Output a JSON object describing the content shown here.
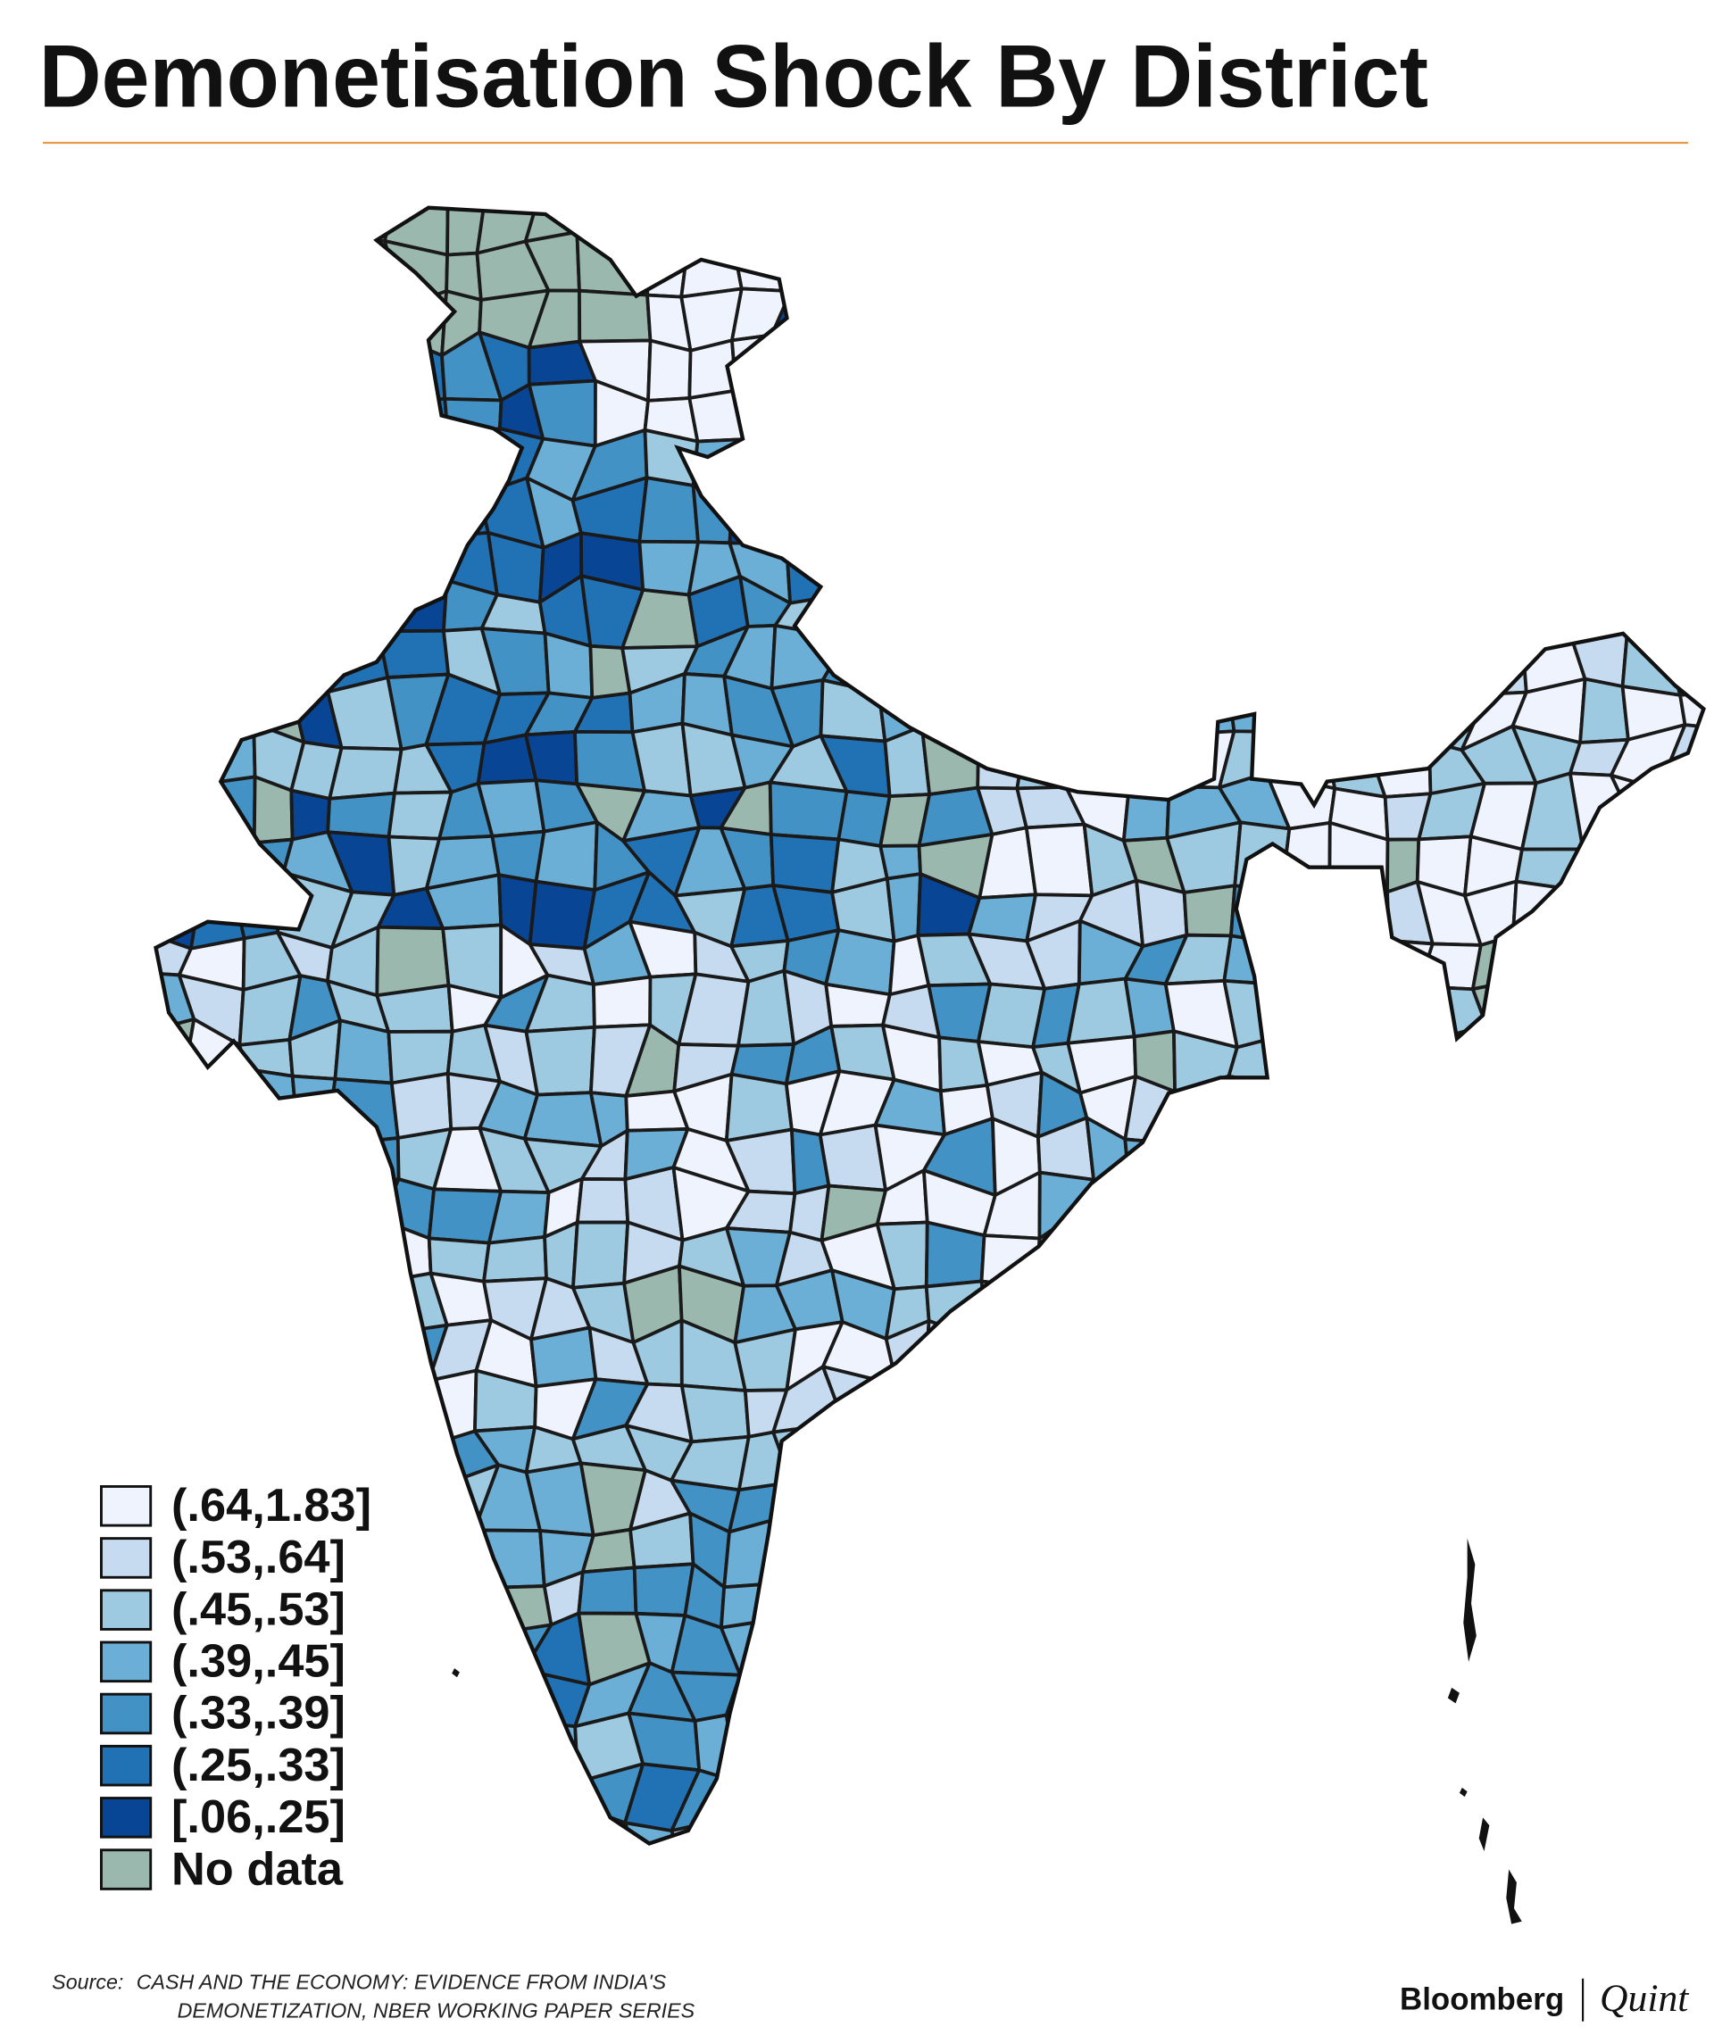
{
  "header": {
    "title": "Demonetisation Shock By District"
  },
  "legend": [
    {
      "label": "(.64,1.83]",
      "color": "#eef3fd"
    },
    {
      "label": "(.53,.64]",
      "color": "#c6dbef"
    },
    {
      "label": "(.45,.53]",
      "color": "#9ecae1"
    },
    {
      "label": "(.39,.45]",
      "color": "#6baed6"
    },
    {
      "label": "(.33,.39]",
      "color": "#4292c6"
    },
    {
      "label": "(.25,.33]",
      "color": "#2171b5"
    },
    {
      "label": "[.06,.25]",
      "color": "#084594"
    },
    {
      "label": "No data",
      "color": "#9ab8ae"
    }
  ],
  "source": {
    "label": "Source:",
    "lines": [
      "CASH AND THE ECONOMY: EVIDENCE FROM INDIA'S",
      "DEMONETIZATION, NBER WORKING PAPER SERIES"
    ]
  },
  "footer": {
    "brand": "Bloomberg",
    "brand_suffix": "Quint"
  }
}
